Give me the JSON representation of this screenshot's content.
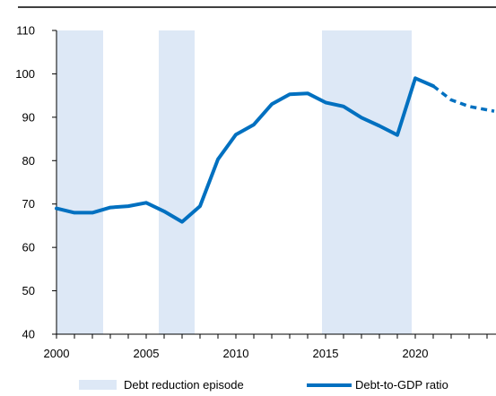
{
  "chart_data": {
    "type": "line",
    "title": "",
    "xlabel": "",
    "ylabel": "",
    "xlim": [
      2000,
      2024.5
    ],
    "ylim": [
      40,
      110
    ],
    "x_ticks": [
      "2000",
      "2005",
      "2010",
      "2015",
      "2020"
    ],
    "y_ticks": [
      "40",
      "50",
      "60",
      "70",
      "80",
      "90",
      "100",
      "110"
    ],
    "grid": false,
    "legend_position": "bottom",
    "colors": {
      "series": "#0070c0",
      "band": "#dde8f6",
      "axis": "#000000"
    },
    "bands": {
      "name": "Debt reduction episode",
      "ranges": [
        [
          2000,
          2002.6
        ],
        [
          2005.7,
          2007.7
        ],
        [
          2014.8,
          2019.8
        ]
      ]
    },
    "series": [
      {
        "name": "Debt-to-GDP ratio",
        "x": [
          2000,
          2001,
          2002,
          2003,
          2004,
          2005,
          2006,
          2007,
          2008,
          2009,
          2010,
          2011,
          2012,
          2013,
          2014,
          2015,
          2016,
          2017,
          2018,
          2019,
          2020,
          2021
        ],
        "values": [
          69.0,
          68.0,
          68.0,
          69.2,
          69.5,
          70.3,
          68.3,
          65.9,
          69.5,
          80.3,
          86.0,
          88.3,
          93.0,
          95.3,
          95.5,
          93.4,
          92.5,
          89.9,
          88.0,
          85.9,
          99.0,
          97.2
        ],
        "projection": {
          "x": [
            2021,
            2022,
            2023,
            2024.4
          ],
          "values": [
            97.2,
            94.0,
            92.5,
            91.4
          ]
        }
      }
    ]
  }
}
